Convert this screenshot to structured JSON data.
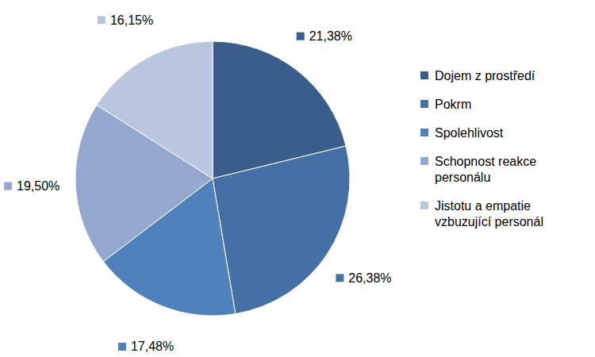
{
  "chart_data": {
    "type": "pie",
    "categories": [
      "Dojem z prostředí",
      "Pokrm",
      "Spolehlivost",
      "Schopnost reakce personálu",
      "Jistotu a empatie vzbuzující personál"
    ],
    "values": [
      21.38,
      26.38,
      17.48,
      19.5,
      16.15
    ],
    "value_labels": [
      "21,38%",
      "26,38%",
      "17,48%",
      "19,50%",
      "16,15%"
    ],
    "colors": [
      "#3a5e8c",
      "#4470a6",
      "#4f81bd",
      "#94a7cf",
      "#bac6df"
    ],
    "data_labels": true,
    "legend": "right"
  }
}
